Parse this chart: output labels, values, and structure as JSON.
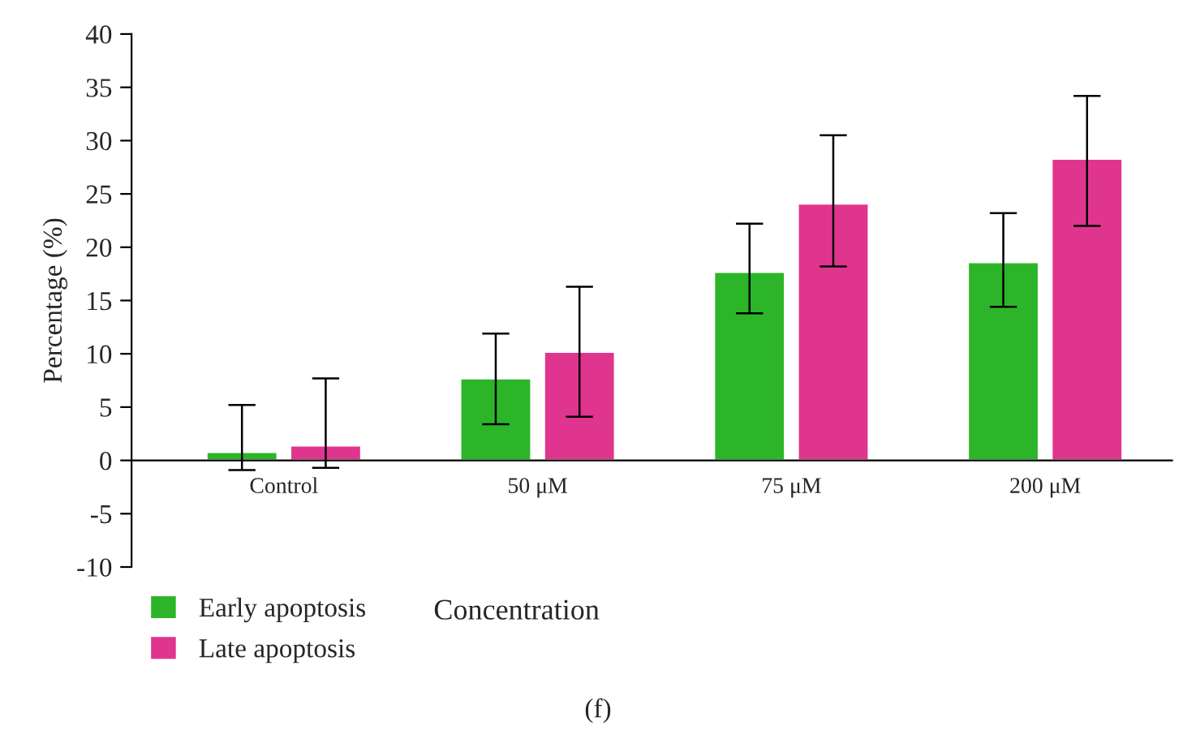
{
  "chart_data": {
    "type": "bar",
    "categories": [
      "Control",
      "50 μM",
      "75 μM",
      "200 μM"
    ],
    "xlabel": "Concentration",
    "ylabel": "Percentage (%)",
    "series": [
      {
        "name": "Early apoptosis",
        "color": "#2db52a",
        "values": [
          0.8,
          7.7,
          17.7,
          18.6
        ],
        "errors": [
          [
            -0.9,
            5.2
          ],
          [
            3.4,
            11.9
          ],
          [
            13.8,
            22.2
          ],
          [
            14.4,
            23.2
          ]
        ]
      },
      {
        "name": "Late apoptosis",
        "color": "#e0358f",
        "values": [
          1.4,
          10.2,
          24.1,
          28.3
        ],
        "errors": [
          [
            -0.7,
            7.7
          ],
          [
            4.1,
            16.3
          ],
          [
            18.2,
            30.5
          ],
          [
            22.0,
            34.2
          ]
        ]
      }
    ],
    "ylim": [
      -10,
      40
    ],
    "yticks": [
      -10,
      -5,
      0,
      5,
      10,
      15,
      20,
      25,
      30,
      35,
      40
    ],
    "grid": false,
    "legend": "bottom left",
    "annotations": [
      "(f)"
    ]
  }
}
